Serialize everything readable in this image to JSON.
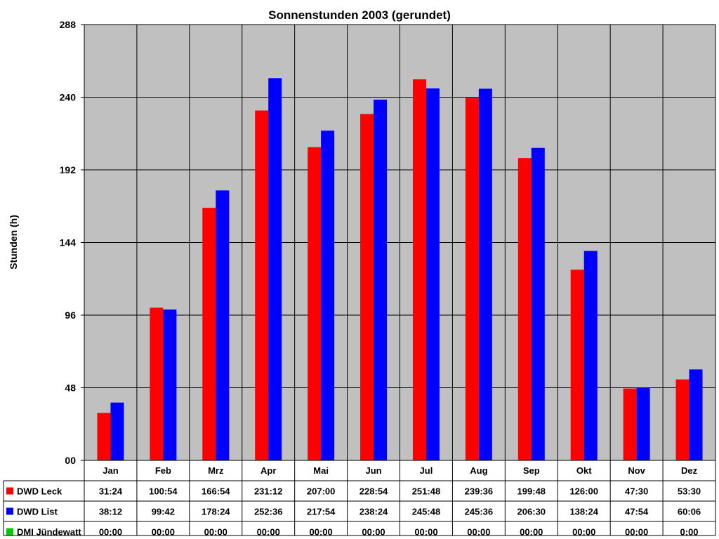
{
  "chart_data": {
    "type": "bar",
    "title": "Sonnenstunden 2003 (gerundet)",
    "ylabel": "Stunden (h)",
    "xlabel": "",
    "ylim": [
      0,
      288
    ],
    "yticks": [
      "00",
      "48",
      "96",
      "144",
      "192",
      "240",
      "288"
    ],
    "grid": true,
    "legend": "data-table",
    "categories": [
      "Jan",
      "Feb",
      "Mrz",
      "Apr",
      "Mai",
      "Jun",
      "Jul",
      "Aug",
      "Sep",
      "Okt",
      "Nov",
      "Dez"
    ],
    "series": [
      {
        "name": "DWD Leck",
        "color": "#ff0000",
        "values": [
          31.4,
          100.9,
          166.9,
          231.2,
          207.0,
          228.9,
          251.8,
          239.6,
          199.8,
          126.0,
          47.5,
          53.5
        ],
        "labels": [
          "31:24",
          "100:54",
          "166:54",
          "231:12",
          "207:00",
          "228:54",
          "251:48",
          "239:36",
          "199:48",
          "126:00",
          "47:30",
          "53:30"
        ]
      },
      {
        "name": "DWD List",
        "color": "#0000ff",
        "values": [
          38.2,
          99.7,
          178.4,
          252.6,
          217.9,
          238.4,
          245.8,
          245.6,
          206.5,
          138.4,
          47.9,
          60.1
        ],
        "labels": [
          "38:12",
          "99:42",
          "178:24",
          "252:36",
          "217:54",
          "238:24",
          "245:48",
          "245:36",
          "206:30",
          "138:24",
          "47:54",
          "60:06"
        ]
      },
      {
        "name": "DMI Jündewatt",
        "color": "#00cc00",
        "values": [
          0,
          0,
          0,
          0,
          0,
          0,
          0,
          0,
          0,
          0,
          0,
          0
        ],
        "labels": [
          "00:00",
          "00:00",
          "00:00",
          "00:00",
          "00:00",
          "00:00",
          "00:00",
          "00:00",
          "00:00",
          "00:00",
          "00:00",
          "0:00"
        ]
      }
    ],
    "colors": {
      "plot_background": "#c0c0c0",
      "grid": "#000000"
    }
  }
}
